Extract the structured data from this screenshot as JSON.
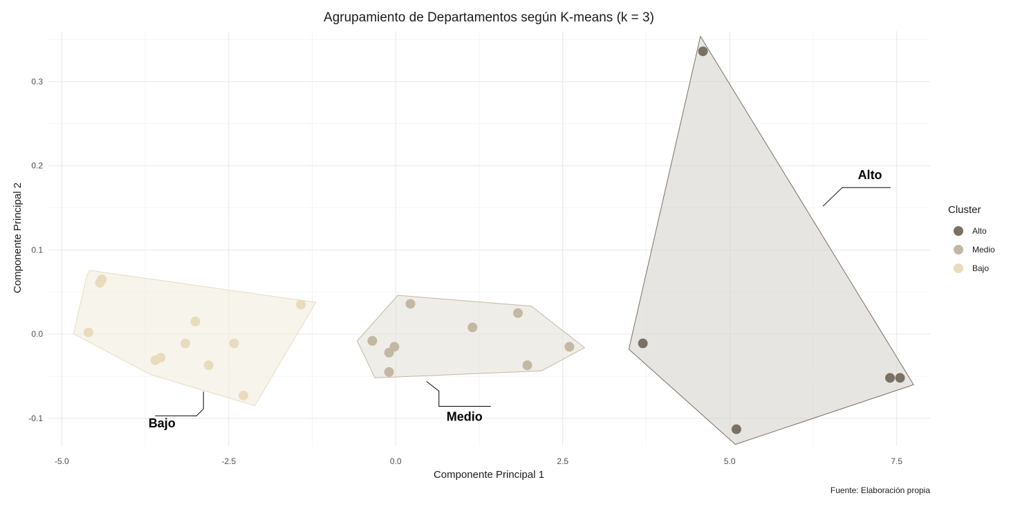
{
  "chart_data": {
    "type": "scatter",
    "title": "Agrupamiento de Departamentos según K-means (k = 3)",
    "xlabel": "Componente Principal 1",
    "ylabel": "Componente Principal 2",
    "caption": "Fuente: Elaboración propia",
    "xlim": [
      -5.2,
      8.0
    ],
    "ylim": [
      -0.133,
      0.36
    ],
    "x_ticks": [
      -5.0,
      -2.5,
      0.0,
      2.5,
      5.0,
      7.5
    ],
    "x_tick_labels": [
      "-5.0",
      "-2.5",
      "0.0",
      "2.5",
      "5.0",
      "7.5"
    ],
    "y_ticks": [
      -0.1,
      0.0,
      0.1,
      0.2,
      0.3
    ],
    "y_tick_labels": [
      "-0.1",
      "0.0",
      "0.1",
      "0.2",
      "0.3"
    ],
    "grid": true,
    "legend": {
      "title": "Cluster",
      "position": "right",
      "entries": [
        {
          "label": "Alto",
          "color": "#7a7063"
        },
        {
          "label": "Medio",
          "color": "#c2b8a3"
        },
        {
          "label": "Bajo",
          "color": "#e8dcbd"
        }
      ]
    },
    "series": [
      {
        "name": "Alto",
        "color": "#7a7063",
        "hull_fill": "#d6d3ce",
        "hull_stroke": "#7a7063",
        "label": "Alto",
        "points": [
          [
            4.6,
            0.336
          ],
          [
            3.7,
            -0.011
          ],
          [
            5.1,
            -0.113
          ],
          [
            7.4,
            -0.052
          ],
          [
            7.55,
            -0.052
          ]
        ]
      },
      {
        "name": "Medio",
        "color": "#c2b8a3",
        "hull_fill": "#e4e1d9",
        "hull_stroke": "#c2b8a3",
        "label": "Medio",
        "points": [
          [
            0.22,
            0.036
          ],
          [
            1.15,
            0.008
          ],
          [
            1.83,
            0.025
          ],
          [
            2.6,
            -0.015
          ],
          [
            1.97,
            -0.037
          ],
          [
            -0.35,
            -0.008
          ],
          [
            -0.02,
            -0.015
          ],
          [
            -0.1,
            -0.022
          ],
          [
            -0.1,
            -0.045
          ]
        ]
      },
      {
        "name": "Bajo",
        "color": "#e8dcbd",
        "hull_fill": "#f2ecdf",
        "hull_stroke": "#e8dcbd",
        "label": "Bajo",
        "points": [
          [
            -4.4,
            0.065
          ],
          [
            -4.43,
            0.061
          ],
          [
            -4.6,
            0.002
          ],
          [
            -3.0,
            0.015
          ],
          [
            -3.15,
            -0.011
          ],
          [
            -2.42,
            -0.011
          ],
          [
            -3.52,
            -0.028
          ],
          [
            -3.6,
            -0.031
          ],
          [
            -2.8,
            -0.037
          ],
          [
            -2.28,
            -0.073
          ],
          [
            -1.42,
            0.035
          ]
        ]
      }
    ],
    "annotations": [
      {
        "text": "Bajo",
        "x": -3.5,
        "y": -0.111
      },
      {
        "text": "Medio",
        "x": 1.03,
        "y": -0.103
      },
      {
        "text": "Alto",
        "x": 7.1,
        "y": 0.184
      }
    ]
  }
}
